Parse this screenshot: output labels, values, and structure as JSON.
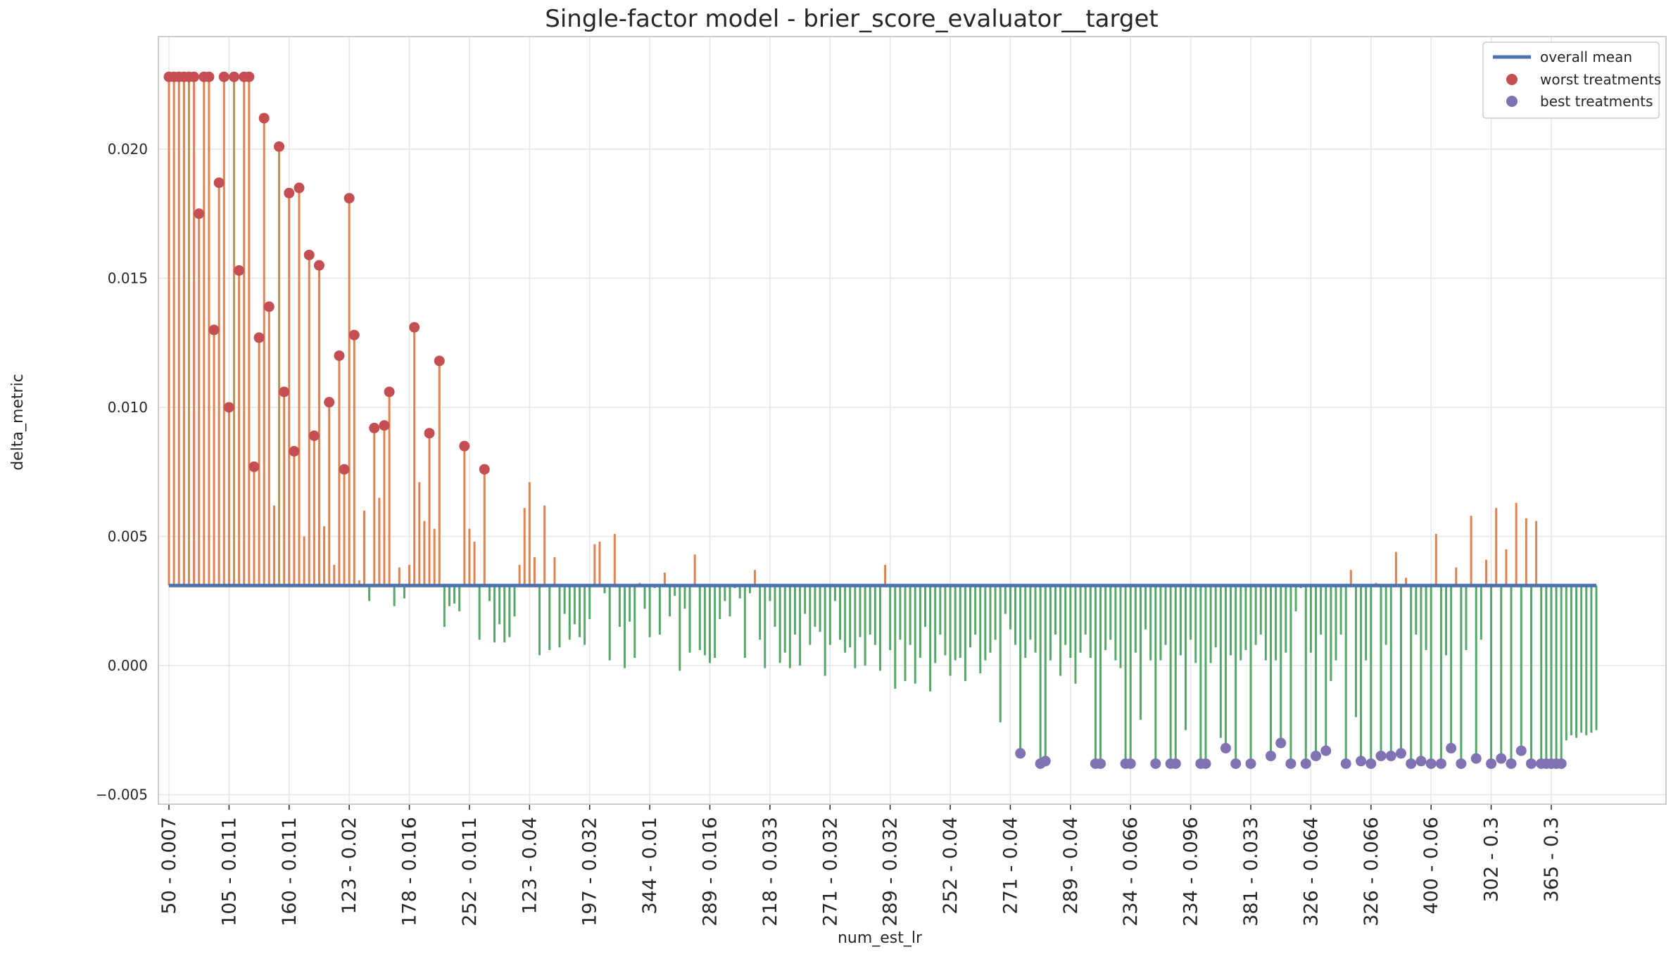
{
  "chart_data": {
    "type": "lollipop",
    "title": "Single-factor model - brier_score_evaluator__target",
    "xlabel": "num_est_lr",
    "ylabel": "delta_metric",
    "ylim": [
      -0.0053,
      0.0243
    ],
    "yticks": [
      -0.005,
      0.0,
      0.005,
      0.01,
      0.015,
      0.02
    ],
    "ytick_labels": [
      "−0.005",
      "0.000",
      "0.005",
      "0.010",
      "0.015",
      "0.020"
    ],
    "overall_mean": 0.0031,
    "n_points": 288,
    "xtick_labels": [
      "50 - 0.007",
      "105 - 0.011",
      "160 - 0.011",
      "123 - 0.02",
      "178 - 0.016",
      "252 - 0.011",
      "123 - 0.04",
      "197 - 0.032",
      "344 - 0.01",
      "289 - 0.016",
      "218 - 0.033",
      "271 - 0.032",
      "289 - 0.032",
      "252 - 0.04",
      "271 - 0.04",
      "289 - 0.04",
      "234 - 0.066",
      "234 - 0.096",
      "381 - 0.033",
      "326 - 0.064",
      "326 - 0.066",
      "400 - 0.06",
      "302 - 0.3",
      "365 - 0.3"
    ],
    "legend": {
      "position": "top-right",
      "entries": [
        "overall mean",
        "worst treatments",
        "best treatments"
      ]
    },
    "grid": true,
    "colors": {
      "above": "#dd8452",
      "below": "#55a868",
      "mean": "#4c72b0",
      "worst": "#c44e52",
      "best": "#8172b3"
    },
    "values": [
      0.0228,
      0.0228,
      0.0228,
      0.0228,
      0.0228,
      0.0228,
      0.0175,
      0.0228,
      0.0228,
      0.013,
      0.0187,
      0.0228,
      0.01,
      0.0228,
      0.0153,
      0.0228,
      0.0228,
      0.0077,
      0.0127,
      0.0212,
      0.0139,
      0.0062,
      0.0201,
      0.0106,
      0.0183,
      0.0083,
      0.0185,
      0.005,
      0.0159,
      0.0089,
      0.0155,
      0.0054,
      0.0102,
      0.0039,
      0.012,
      0.0076,
      0.0181,
      0.0128,
      0.0033,
      0.006,
      0.0025,
      0.0092,
      0.0065,
      0.0093,
      0.0106,
      0.0023,
      0.0038,
      0.0026,
      0.0039,
      0.0131,
      0.0071,
      0.0056,
      0.009,
      0.0053,
      0.0118,
      0.0015,
      0.0023,
      0.0024,
      0.0021,
      0.0085,
      0.0053,
      0.0048,
      0.001,
      0.0076,
      0.0025,
      0.0009,
      0.0016,
      0.0009,
      0.0011,
      0.0019,
      0.0039,
      0.0061,
      0.0071,
      0.0042,
      0.0004,
      0.0062,
      0.0006,
      0.0042,
      0.0007,
      0.002,
      0.001,
      0.0016,
      0.0011,
      0.0008,
      0.0018,
      0.0047,
      0.0048,
      0.0028,
      0.0002,
      0.0051,
      0.0015,
      -0.0001,
      0.0017,
      0.0003,
      0.0032,
      0.0022,
      0.0011,
      0.003,
      0.0012,
      0.0036,
      0.0019,
      0.0027,
      -0.0002,
      0.0022,
      0.0005,
      0.0043,
      0.0006,
      0.0004,
      0.0001,
      0.0003,
      0.0018,
      0.0025,
      0.0019,
      0.003,
      0.0026,
      0.0003,
      0.0028,
      0.0037,
      0.001,
      -0.0001,
      0.0025,
      0.0015,
      0.0001,
      0.0005,
      -0.0001,
      0.0012,
      0.0,
      0.002,
      0.0008,
      0.0015,
      0.0013,
      -0.0004,
      0.0008,
      0.0025,
      0.001,
      0.0005,
      0.0007,
      -0.0001,
      0.0011,
      0.0,
      0.0012,
      0.0008,
      -0.0002,
      0.0039,
      0.0006,
      -0.0009,
      0.001,
      -0.0006,
      0.0008,
      -0.0007,
      0.0003,
      0.0015,
      -0.001,
      0.0001,
      0.0012,
      0.0004,
      -0.0004,
      0.0002,
      0.0003,
      -0.0006,
      0.0007,
      0.0012,
      -0.0003,
      0.0002,
      0.0005,
      0.001,
      -0.0022,
      0.002,
      0.0014,
      0.0008,
      -0.0034,
      0.0003,
      0.001,
      0.0005,
      -0.0038,
      -0.0037,
      0.0002,
      0.0012,
      -0.0004,
      0.0008,
      0.0003,
      -0.0007,
      0.0005,
      0.0012,
      0.0003,
      -0.0038,
      -0.0038,
      0.0006,
      0.001,
      0.0002,
      -0.0001,
      -0.0038,
      -0.0038,
      0.0005,
      -0.0021,
      0.0014,
      0.0002,
      -0.0038,
      0.0002,
      0.0008,
      -0.0038,
      -0.0038,
      0.0004,
      -0.0025,
      0.001,
      0.0001,
      -0.0038,
      -0.0038,
      0.0001,
      0.0007,
      -0.0028,
      -0.0032,
      0.0004,
      -0.0038,
      0.0002,
      0.0006,
      -0.0038,
      0.0008,
      0.0012,
      0.0002,
      -0.0035,
      0.0002,
      -0.003,
      0.0005,
      -0.0038,
      0.0021,
      0.003,
      -0.0038,
      0.0005,
      -0.0035,
      0.0012,
      -0.0033,
      -0.0006,
      0.0002,
      0.0012,
      -0.0038,
      0.0037,
      -0.002,
      -0.0037,
      0.0002,
      -0.0038,
      0.0032,
      -0.0035,
      0.0008,
      -0.0035,
      0.0044,
      -0.0034,
      0.0034,
      -0.0038,
      0.0012,
      -0.0037,
      0.0006,
      -0.0038,
      0.0051,
      -0.0038,
      0.0004,
      -0.0032,
      0.0038,
      -0.0038,
      0.0006,
      0.0058,
      -0.0036,
      0.001,
      0.0041,
      -0.0038,
      0.0061,
      -0.0036,
      0.0045,
      -0.0038,
      0.0063,
      -0.0033,
      0.0057,
      -0.0038,
      0.0056,
      -0.0038,
      -0.0038,
      -0.0038,
      -0.0038,
      -0.0038,
      -0.0029,
      -0.0027,
      -0.0028,
      -0.0026,
      -0.0027,
      -0.0026,
      -0.0025
    ]
  }
}
